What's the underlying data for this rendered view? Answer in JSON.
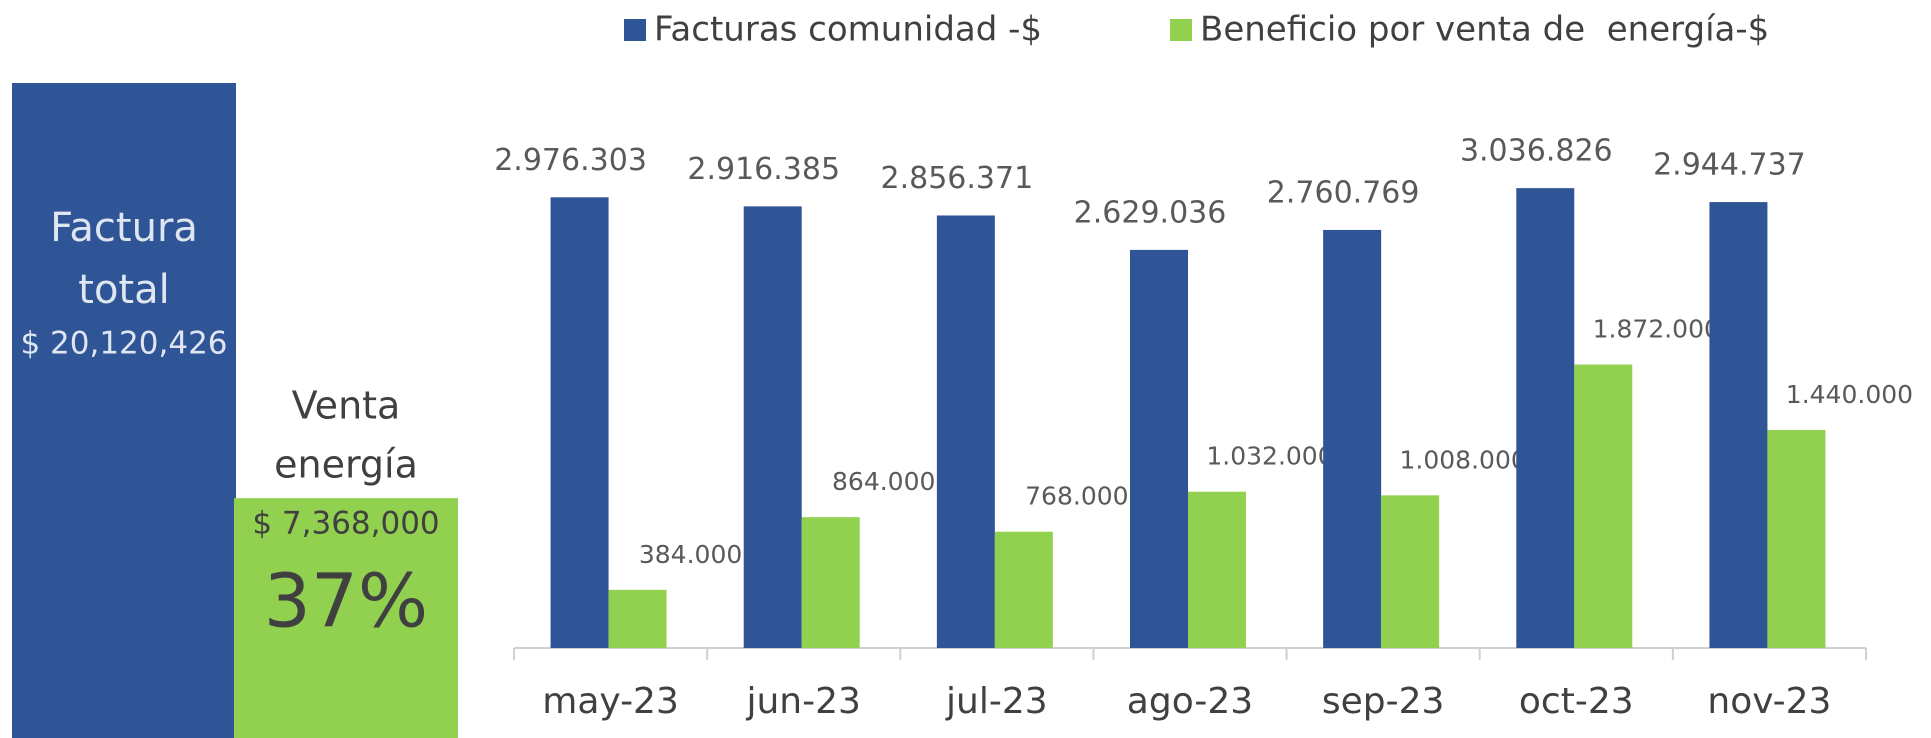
{
  "chart_data": {
    "type": "bar",
    "categories": [
      "may-23",
      "jun-23",
      "jul-23",
      "ago-23",
      "sep-23",
      "oct-23",
      "nov-23"
    ],
    "series": [
      {
        "name": "Facturas comunidad -$",
        "color": "#2f5597",
        "values": [
          2976303,
          2916385,
          2856371,
          2629036,
          2760769,
          3036826,
          2944737
        ],
        "value_labels": [
          "2.976.303",
          "2.916.385",
          "2.856.371",
          "2.629.036",
          "2.760.769",
          "3.036.826",
          "2.944.737"
        ]
      },
      {
        "name": "Beneficio por venta de  energía-$",
        "color": "#92d050",
        "values": [
          384000,
          864000,
          768000,
          1032000,
          1008000,
          1872000,
          1440000
        ],
        "value_labels": [
          "384.000",
          "864.000",
          "768.000",
          "1.032.000",
          "1.008.000",
          "1.872.000",
          "1.440.000"
        ]
      }
    ],
    "ylim": [
      0,
      3500000
    ],
    "summary": {
      "total": {
        "label_lines": [
          "Factura",
          "total"
        ],
        "value": 20120426,
        "value_label": "$ 20,120,426",
        "color": "#2f5597"
      },
      "sale": {
        "label_lines": [
          "Venta",
          "energía"
        ],
        "value": 7368000,
        "value_label": "$ 7,368,000",
        "color": "#92d050",
        "percent": 37,
        "percent_label": "37%"
      }
    }
  }
}
